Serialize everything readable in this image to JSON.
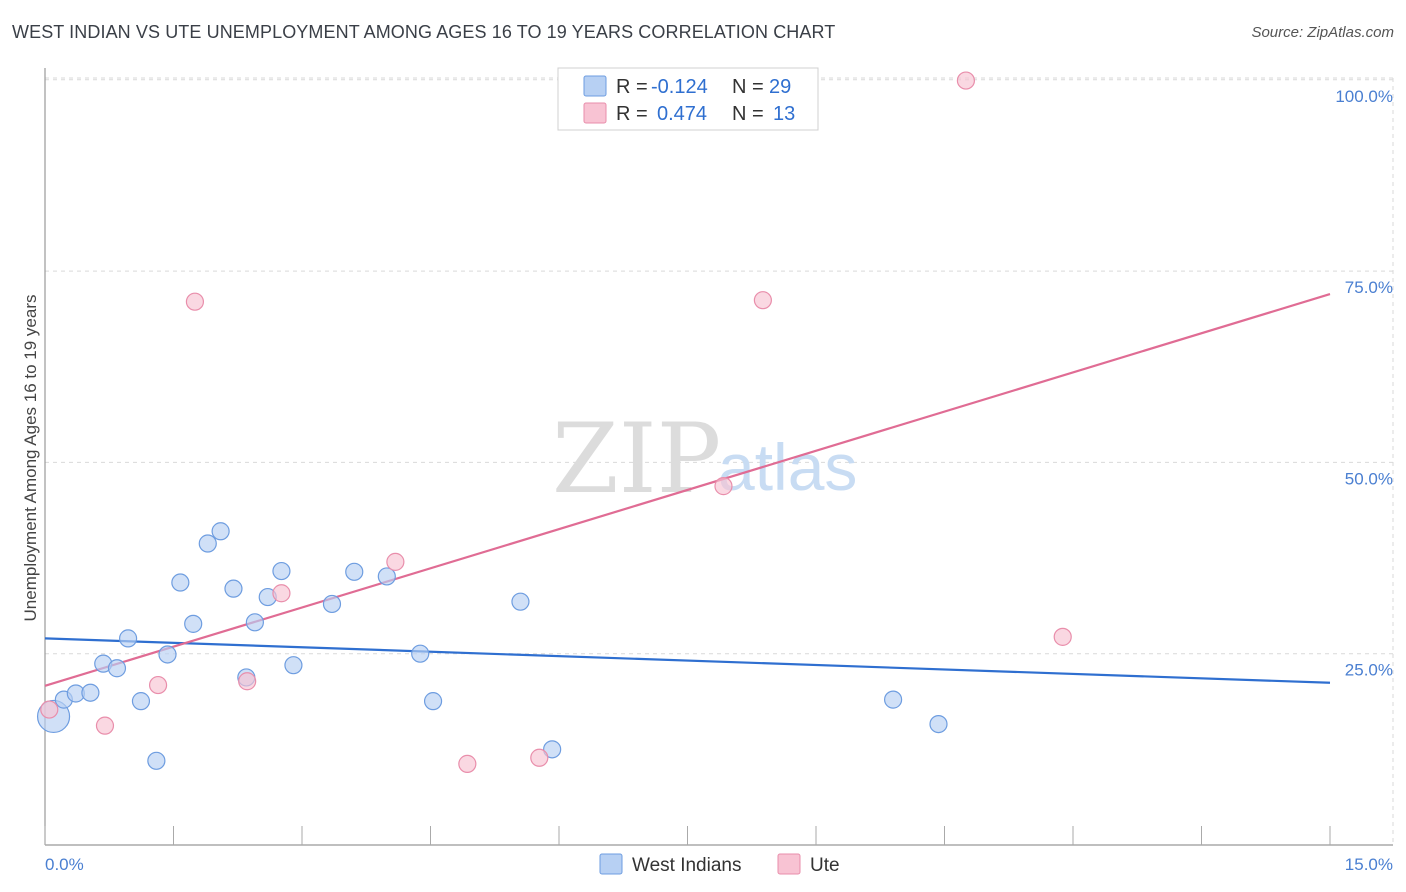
{
  "title": "WEST INDIAN VS UTE UNEMPLOYMENT AMONG AGES 16 TO 19 YEARS CORRELATION CHART",
  "source": "Source: ZipAtlas.com",
  "watermark": {
    "zip": "ZIP",
    "atlas": "atlas"
  },
  "colors": {
    "west_indians_fill": "#b7d0f3",
    "west_indians_stroke": "#6e9de0",
    "west_indians_line": "#2f6fd0",
    "ute_fill": "#f8c3d3",
    "ute_stroke": "#e98eab",
    "ute_line": "#e06c94",
    "grid": "#d9d9d9",
    "tick_text": "#4a7fd1"
  },
  "legend": {
    "rows": [
      {
        "r_label": "R =",
        "r_value": "-0.124",
        "n_label": "N =",
        "n_value": "29"
      },
      {
        "r_label": "R =",
        "r_value": "0.474",
        "n_label": "N =",
        "n_value": "13"
      }
    ]
  },
  "chart_data": {
    "type": "scatter",
    "title": "WEST INDIAN VS UTE UNEMPLOYMENT AMONG AGES 16 TO 19 YEARS CORRELATION CHART",
    "xlabel": "",
    "ylabel": "Unemployment Among Ages 16 to 19 years",
    "xlim": [
      0,
      15
    ],
    "ylim": [
      0,
      102
    ],
    "x_tick_labels": [
      "0.0%",
      "15.0%"
    ],
    "y_ticks": [
      25,
      50,
      75,
      100
    ],
    "y_tick_labels": [
      "25.0%",
      "50.0%",
      "75.0%",
      "100.0%"
    ],
    "legend_position": "top-center",
    "series": [
      {
        "name": "West Indians",
        "r": -0.124,
        "n": 29,
        "trend": {
          "x": [
            0,
            15
          ],
          "y": [
            27.0,
            21.2
          ]
        },
        "points": [
          {
            "x": 0.1,
            "y": 16.8,
            "big": true
          },
          {
            "x": 0.22,
            "y": 19.0
          },
          {
            "x": 0.36,
            "y": 19.8
          },
          {
            "x": 0.53,
            "y": 19.9
          },
          {
            "x": 0.68,
            "y": 23.7
          },
          {
            "x": 0.84,
            "y": 23.1
          },
          {
            "x": 0.97,
            "y": 27.0
          },
          {
            "x": 1.12,
            "y": 18.8
          },
          {
            "x": 1.3,
            "y": 11.0
          },
          {
            "x": 1.43,
            "y": 24.9
          },
          {
            "x": 1.58,
            "y": 34.3
          },
          {
            "x": 1.73,
            "y": 28.9
          },
          {
            "x": 1.9,
            "y": 39.4
          },
          {
            "x": 2.05,
            "y": 41.0
          },
          {
            "x": 2.2,
            "y": 33.5
          },
          {
            "x": 2.35,
            "y": 21.9
          },
          {
            "x": 2.45,
            "y": 29.1
          },
          {
            "x": 2.6,
            "y": 32.4
          },
          {
            "x": 2.76,
            "y": 35.8
          },
          {
            "x": 2.9,
            "y": 23.5
          },
          {
            "x": 3.35,
            "y": 31.5
          },
          {
            "x": 3.61,
            "y": 35.7
          },
          {
            "x": 3.99,
            "y": 35.1
          },
          {
            "x": 4.38,
            "y": 25.0
          },
          {
            "x": 4.53,
            "y": 18.8
          },
          {
            "x": 5.55,
            "y": 31.8
          },
          {
            "x": 5.92,
            "y": 12.5
          },
          {
            "x": 9.9,
            "y": 19.0
          },
          {
            "x": 10.43,
            "y": 15.8
          }
        ]
      },
      {
        "name": "Ute",
        "r": 0.474,
        "n": 13,
        "trend": {
          "x": [
            0,
            15
          ],
          "y": [
            20.8,
            72.0
          ]
        },
        "points": [
          {
            "x": 0.05,
            "y": 17.7
          },
          {
            "x": 0.7,
            "y": 15.6
          },
          {
            "x": 1.32,
            "y": 20.9
          },
          {
            "x": 1.75,
            "y": 71.0
          },
          {
            "x": 2.36,
            "y": 21.4
          },
          {
            "x": 2.76,
            "y": 32.9
          },
          {
            "x": 4.09,
            "y": 37.0
          },
          {
            "x": 4.93,
            "y": 10.6
          },
          {
            "x": 5.77,
            "y": 11.4
          },
          {
            "x": 7.92,
            "y": 46.9
          },
          {
            "x": 8.38,
            "y": 71.2
          },
          {
            "x": 10.75,
            "y": 99.9
          },
          {
            "x": 11.88,
            "y": 27.2
          }
        ]
      }
    ]
  }
}
